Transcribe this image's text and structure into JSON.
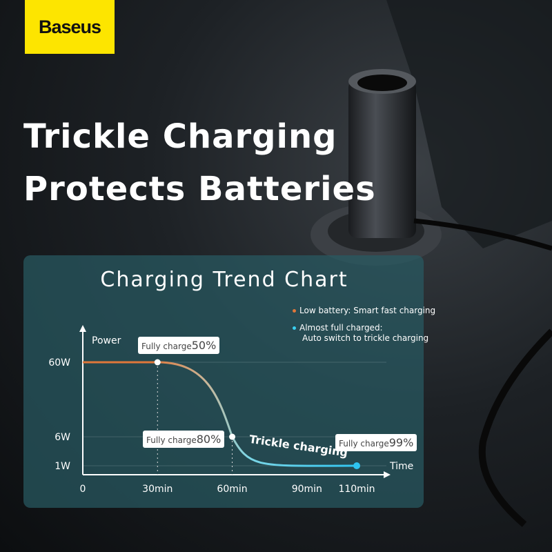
{
  "brand": {
    "logo": "Baseus",
    "color": "#fde500"
  },
  "headline": [
    "Trickle Charging",
    "Protects Batteries"
  ],
  "chart_data": {
    "type": "line",
    "title": "Charging Trend Chart",
    "xlabel": "Time",
    "ylabel": "Power",
    "x_ticks": [
      "0",
      "30min",
      "60min",
      "90min",
      "110min"
    ],
    "y_ticks": [
      "60W",
      "6W",
      "1W"
    ],
    "x": [
      0,
      30,
      60,
      110
    ],
    "y": [
      60,
      60,
      6,
      1
    ],
    "y_scale": "non-linear",
    "legend": [
      {
        "text": "Low battery: Smart fast charging",
        "color": "#e0773a"
      },
      {
        "text1": "Almost full charged:",
        "text2": "Auto switch to trickle charging",
        "color": "#3ad0f0"
      }
    ],
    "annotations": [
      {
        "prefix": "Fully charge",
        "value": "50%",
        "x": 30
      },
      {
        "prefix": "Fully charge",
        "value": "80%",
        "x": 60
      },
      {
        "prefix": "Fully charge",
        "value": "99%",
        "x": 110
      }
    ],
    "curve_label": "Trickle charging",
    "grid": "horizontal"
  }
}
